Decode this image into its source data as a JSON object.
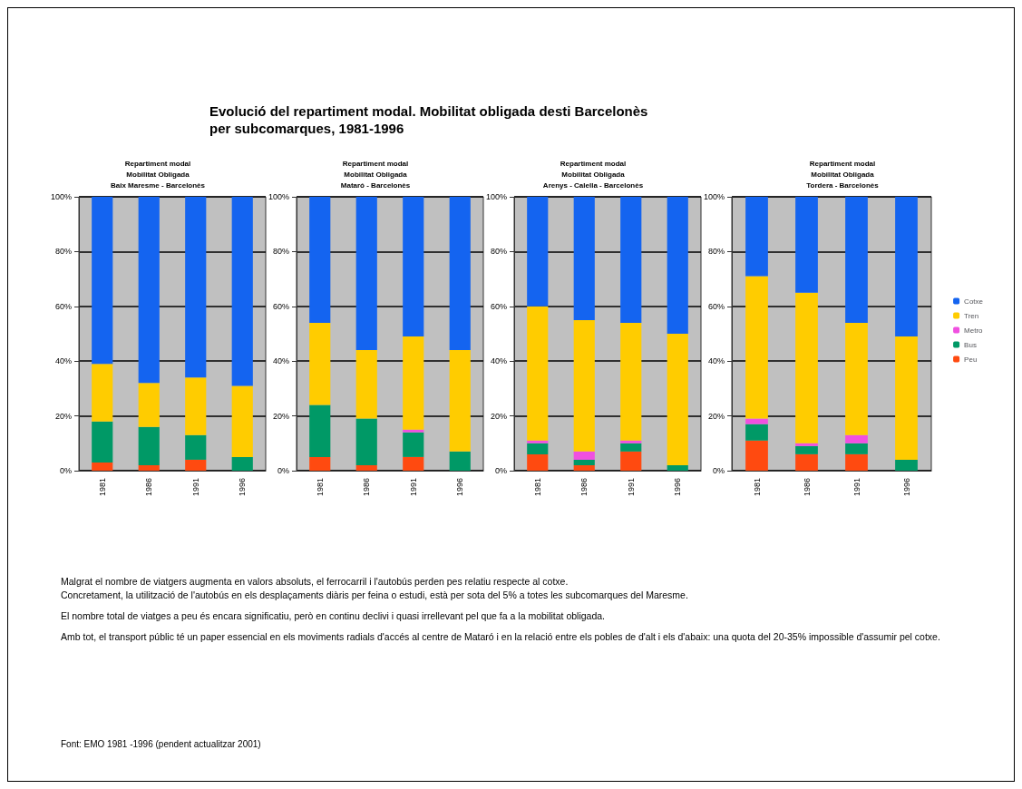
{
  "chart_data": [
    {
      "type": "other",
      "title": "Evolució del repartiment modal. Mobilitat obligada desti Barcelonès\nper subcomarques, 1981-1996",
      "annotations": [
        "Malgrat el nombre de viatgers augmenta en valors absoluts, el ferrocarril i l'autobús perden pes relatiu respecte al cotxe.\nConcretament, la utilització de l'autobús en els desplaçaments diàris per feina o estudi, està per sota del 5% a totes les subcomarques del Maresme.",
        "El nombre total de viatges a peu és encara significatiu, però en continu declivi i quasi irrellevant pel que fa a la mobilitat obligada.",
        "Amb tot, el transport públic té un paper essencial en els moviments radials d'accés al centre de Mataró i en la relació entre els pobles de d'alt i els d'abaix: una quota del 20-35% impossible d'assumir pel cotxe.",
        "Font: EMO 1981 -1996 (pendent actualitzar 2001)"
      ]
    },
    {
      "type": "bar",
      "stacked": true,
      "title": "Repartiment modal\nMobilitat Obligada\nBaix Maresme - Barcelonès",
      "categories": [
        "1981",
        "1986",
        "1991",
        "1996"
      ],
      "ylim": [
        0,
        100
      ],
      "yticks": [
        {
          "value": 0,
          "label": "0%"
        },
        {
          "value": 20,
          "label": "20%"
        },
        {
          "value": 40,
          "label": "40%"
        },
        {
          "value": 60,
          "label": "60%"
        },
        {
          "value": 80,
          "label": "80%"
        },
        {
          "value": 100,
          "label": "100%"
        }
      ],
      "grid": "y",
      "series": [
        {
          "color": "#ff4a10",
          "values": [
            3,
            2,
            4,
            0
          ]
        },
        {
          "color": "#009966",
          "values": [
            15,
            14,
            9,
            5
          ]
        },
        {
          "color": "#f050e0",
          "values": [
            0,
            0,
            0,
            0
          ]
        },
        {
          "color": "#ffcc00",
          "values": [
            21,
            16,
            21,
            26
          ]
        },
        {
          "color": "#1464f0",
          "values": [
            61,
            68,
            66,
            69
          ]
        }
      ]
    },
    {
      "type": "bar",
      "stacked": true,
      "title": "Repartiment modal\nMobilitat Obligada\nMataró - Barcelonès",
      "categories": [
        "1981",
        "1986",
        "1991",
        "1996"
      ],
      "ylim": [
        0,
        100
      ],
      "yticks": [
        {
          "value": 0,
          "label": "0%"
        },
        {
          "value": 20,
          "label": "20%"
        },
        {
          "value": 40,
          "label": "40%"
        },
        {
          "value": 60,
          "label": "60%"
        },
        {
          "value": 80,
          "label": "80%"
        },
        {
          "value": 100,
          "label": "100%"
        }
      ],
      "grid": "y",
      "series": [
        {
          "color": "#ff4a10",
          "values": [
            5,
            2,
            5,
            0
          ]
        },
        {
          "color": "#009966",
          "values": [
            19,
            17,
            9,
            7
          ]
        },
        {
          "color": "#f050e0",
          "values": [
            0,
            0,
            1,
            0
          ]
        },
        {
          "color": "#ffcc00",
          "values": [
            30,
            25,
            34,
            37
          ]
        },
        {
          "color": "#1464f0",
          "values": [
            46,
            56,
            51,
            56
          ]
        }
      ]
    },
    {
      "type": "bar",
      "stacked": true,
      "title": "Repartiment modal\nMobilitat Obligada\nArenys - Calella - Barcelonès",
      "categories": [
        "1981",
        "1986",
        "1991",
        "1996"
      ],
      "ylim": [
        0,
        100
      ],
      "yticks": [
        {
          "value": 0,
          "label": "0%"
        },
        {
          "value": 20,
          "label": "20%"
        },
        {
          "value": 40,
          "label": "40%"
        },
        {
          "value": 60,
          "label": "60%"
        },
        {
          "value": 80,
          "label": "80%"
        },
        {
          "value": 100,
          "label": "100%"
        }
      ],
      "grid": "y",
      "series": [
        {
          "color": "#ff4a10",
          "values": [
            6,
            2,
            7,
            0
          ]
        },
        {
          "color": "#009966",
          "values": [
            4,
            2,
            3,
            2
          ]
        },
        {
          "color": "#f050e0",
          "values": [
            1,
            3,
            1,
            0
          ]
        },
        {
          "color": "#ffcc00",
          "values": [
            49,
            48,
            43,
            48
          ]
        },
        {
          "color": "#1464f0",
          "values": [
            40,
            45,
            46,
            50
          ]
        }
      ]
    },
    {
      "type": "bar",
      "stacked": true,
      "title": "Repartiment modal\nMobilitat Obligada\nTordera - Barcelonès",
      "categories": [
        "1981",
        "1986",
        "1991",
        "1996"
      ],
      "ylim": [
        0,
        100
      ],
      "yticks": [
        {
          "value": 0,
          "label": "0%"
        },
        {
          "value": 20,
          "label": "20%"
        },
        {
          "value": 40,
          "label": "40%"
        },
        {
          "value": 60,
          "label": "60%"
        },
        {
          "value": 80,
          "label": "80%"
        },
        {
          "value": 100,
          "label": "100%"
        }
      ],
      "grid": "y",
      "legend": "right",
      "series": [
        {
          "name": "Peu",
          "color": "#ff4a10",
          "values": [
            11,
            6,
            6,
            0
          ]
        },
        {
          "name": "Bus",
          "color": "#009966",
          "values": [
            6,
            3,
            4,
            4
          ]
        },
        {
          "name": "Metro",
          "color": "#f050e0",
          "values": [
            2,
            1,
            3,
            0
          ]
        },
        {
          "name": "Tren",
          "color": "#ffcc00",
          "values": [
            52,
            55,
            41,
            45
          ]
        },
        {
          "name": "Cotxe",
          "color": "#1464f0",
          "values": [
            29,
            35,
            46,
            51
          ]
        }
      ]
    }
  ]
}
